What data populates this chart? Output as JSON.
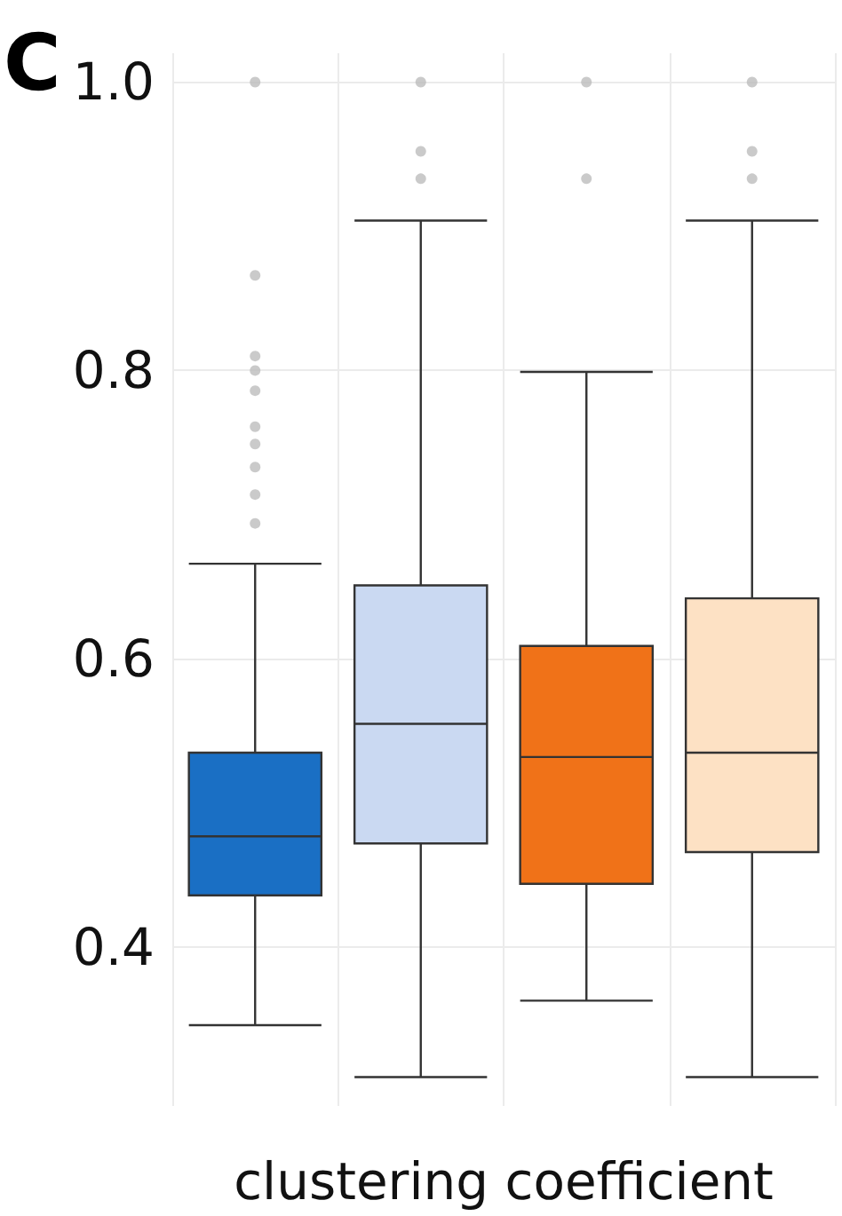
{
  "chart_data": {
    "type": "box",
    "annotations": [
      "C"
    ],
    "xlabel": "clustering coefficient",
    "categories": [
      null,
      null,
      null,
      null
    ],
    "colors": [
      "#1a6fc4",
      "#cad9f2",
      "#f07218",
      "#fde1c4"
    ],
    "boxes": [
      {
        "low": 0.346,
        "q1": 0.436,
        "median": 0.477,
        "q3": 0.535,
        "high": 0.666,
        "outliers": [
          0.694,
          0.714,
          0.733,
          0.749,
          0.761,
          0.786,
          0.8,
          0.81,
          0.866,
          1.0
        ]
      },
      {
        "low": 0.31,
        "q1": 0.472,
        "median": 0.555,
        "q3": 0.651,
        "high": 0.904,
        "outliers": [
          0.933,
          0.952,
          1.0
        ]
      },
      {
        "low": 0.363,
        "q1": 0.444,
        "median": 0.532,
        "q3": 0.609,
        "high": 0.799,
        "outliers": [
          0.933,
          1.0
        ]
      },
      {
        "low": 0.31,
        "q1": 0.466,
        "median": 0.535,
        "q3": 0.642,
        "high": 0.904,
        "outliers": [
          0.933,
          0.952,
          1.0
        ]
      }
    ],
    "ylim": [
      0.29,
      1.02
    ],
    "yticks": [
      {
        "value": 0.4,
        "label": "0.4"
      },
      {
        "value": 0.6,
        "label": "0.6"
      },
      {
        "value": 0.8,
        "label": "0.8"
      },
      {
        "value": 1.0,
        "label": "1.0"
      }
    ],
    "grid": true
  }
}
